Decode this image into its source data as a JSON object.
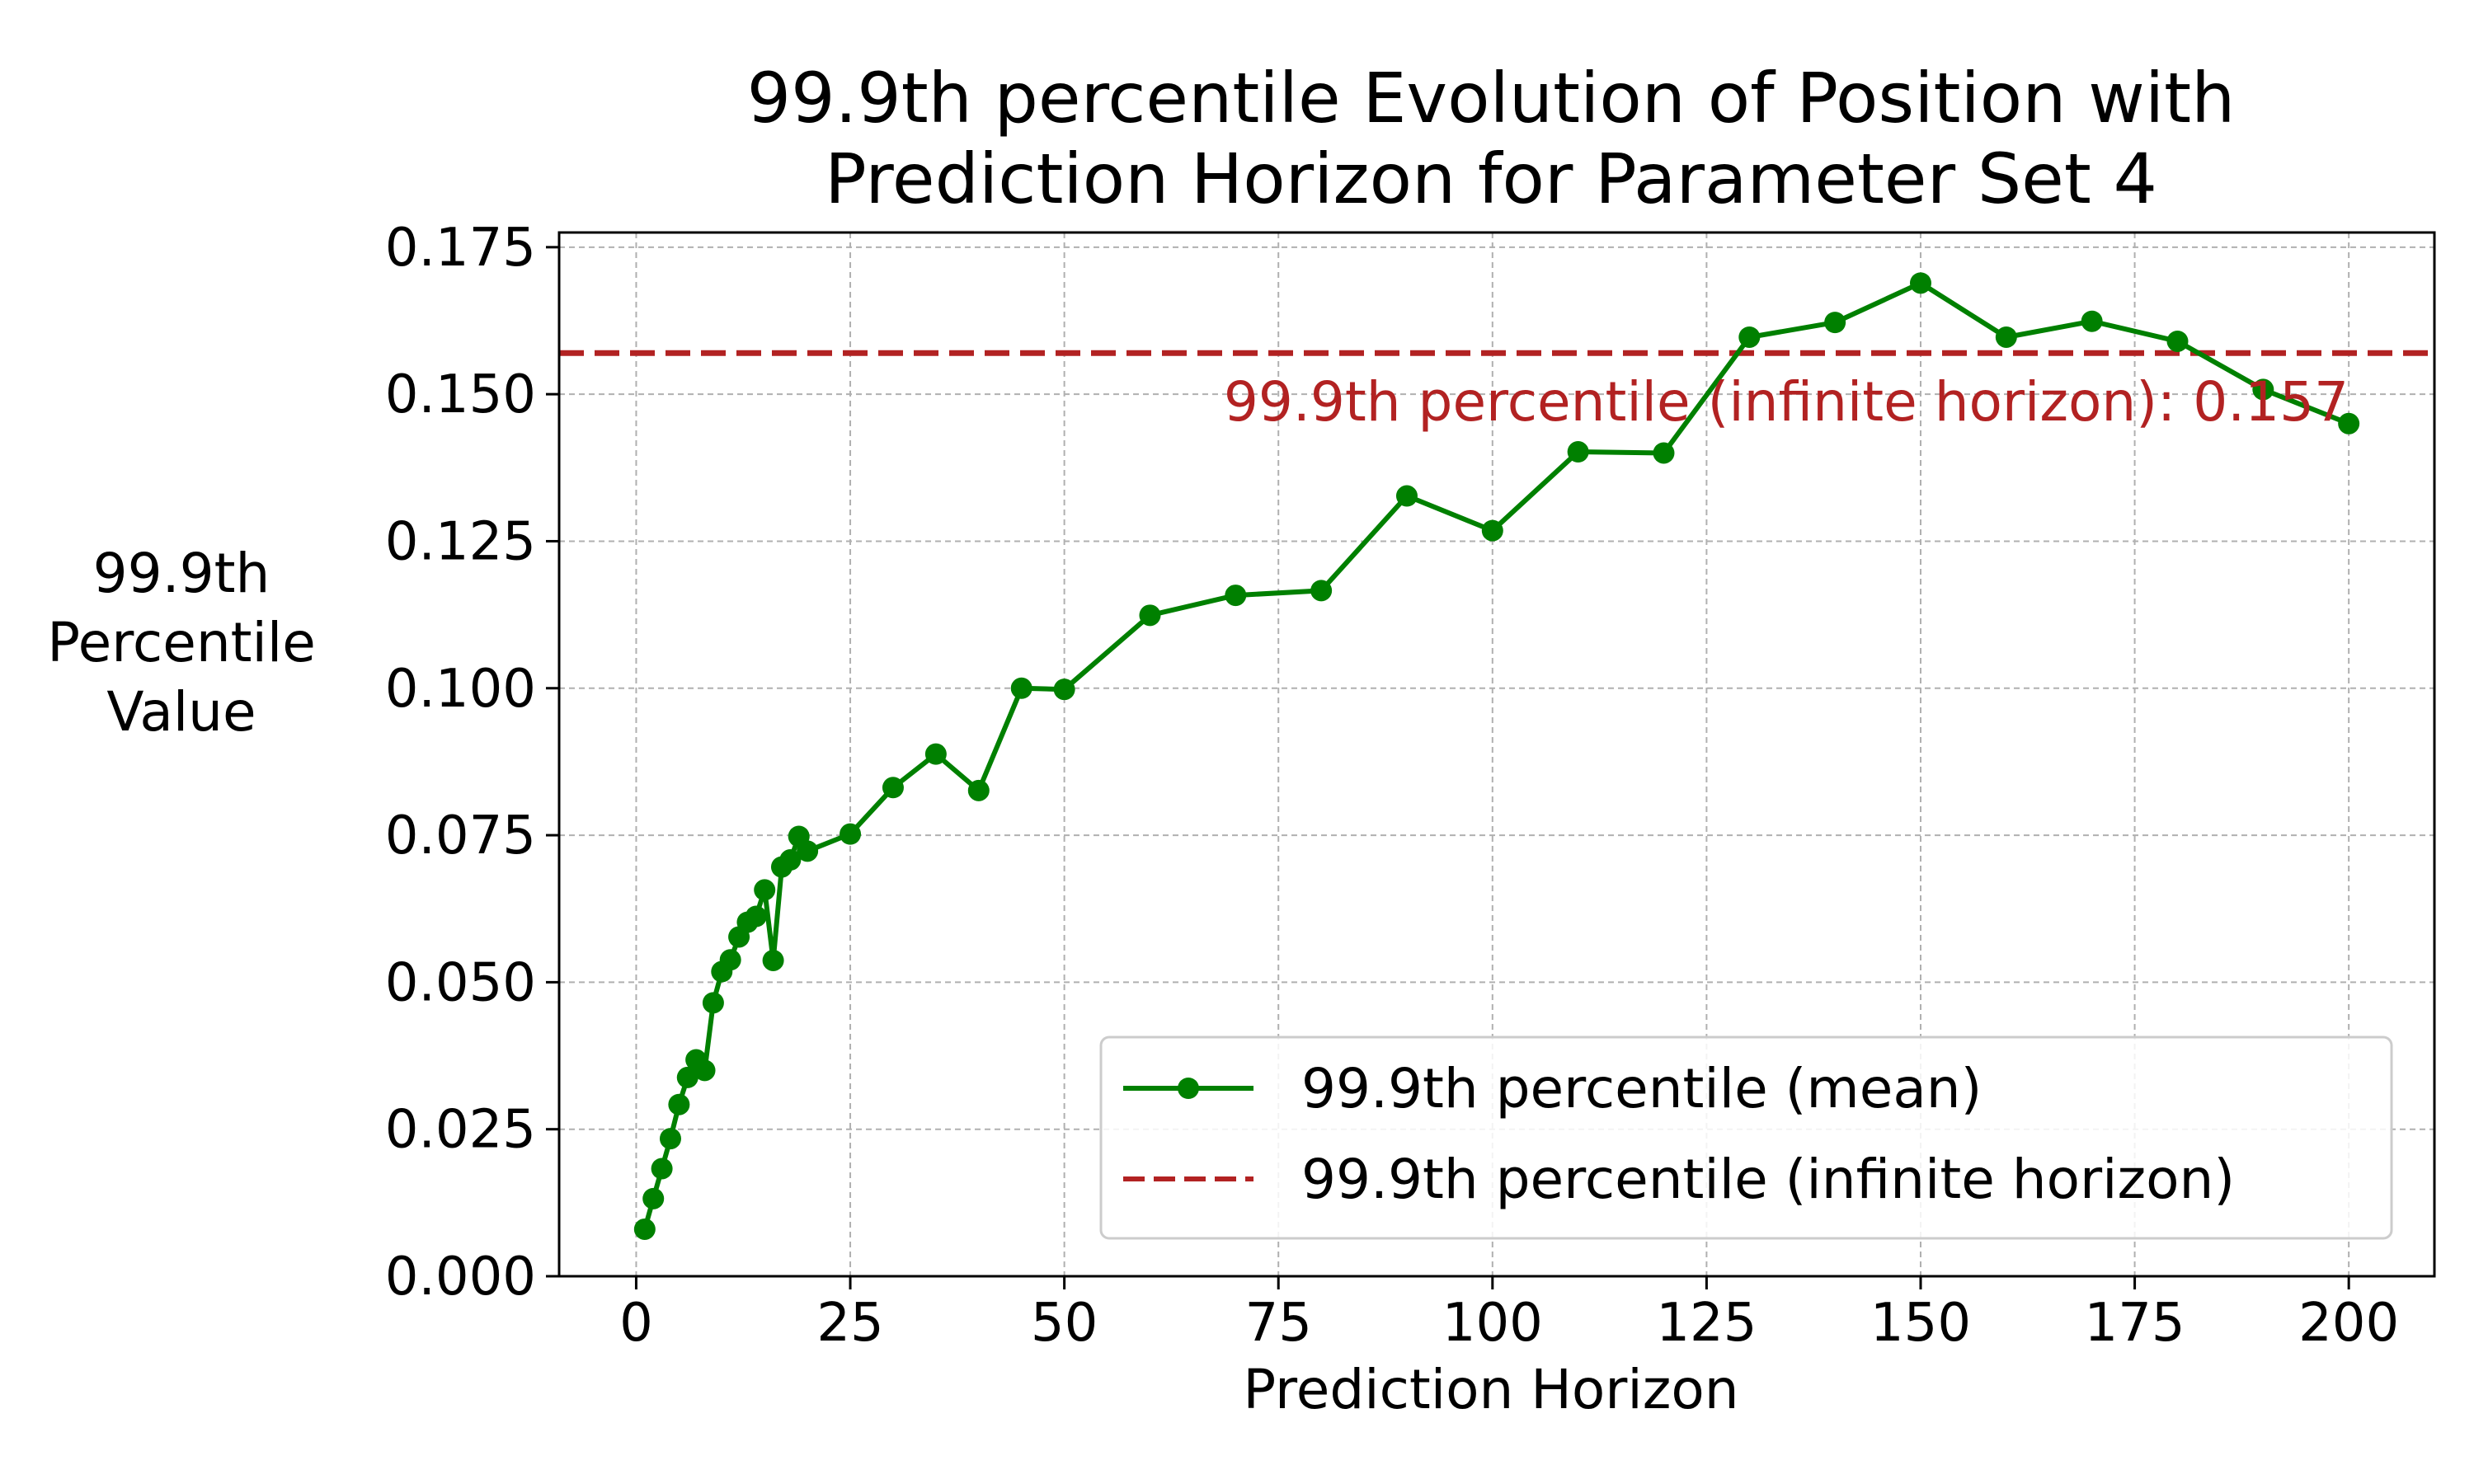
{
  "chart_data": {
    "type": "line",
    "title_lines": [
      "99.9th percentile Evolution of Position with",
      "Prediction Horizon for Parameter Set 4"
    ],
    "xlabel": "Prediction Horizon",
    "ylabel_lines": [
      "99.9th",
      "Percentile",
      "Value"
    ],
    "xlim": [
      -9,
      210
    ],
    "ylim": [
      0,
      0.1775
    ],
    "xticks": [
      0,
      25,
      50,
      75,
      100,
      125,
      150,
      175,
      200
    ],
    "xtick_labels": [
      "0",
      "25",
      "50",
      "75",
      "100",
      "125",
      "150",
      "175",
      "200"
    ],
    "yticks": [
      0,
      0.025,
      0.05,
      0.075,
      0.1,
      0.125,
      0.15,
      0.175
    ],
    "ytick_labels": [
      "0.000",
      "0.025",
      "0.050",
      "0.075",
      "0.100",
      "0.125",
      "0.150",
      "0.175"
    ],
    "grid": true,
    "legend_position": "lower-right",
    "series": [
      {
        "name": "99.9th percentile (mean)",
        "style": "line-marker",
        "color": "#008000",
        "x": [
          1,
          2,
          3,
          4,
          5,
          6,
          7,
          8,
          9,
          10,
          11,
          12,
          13,
          14,
          15,
          16,
          17,
          18,
          19,
          20,
          25,
          30,
          35,
          40,
          45,
          50,
          60,
          70,
          80,
          90,
          100,
          110,
          120,
          130,
          140,
          150,
          160,
          170,
          180,
          190,
          200
        ],
        "y": [
          0.008,
          0.0132,
          0.0183,
          0.0234,
          0.0292,
          0.0338,
          0.0368,
          0.035,
          0.0465,
          0.0518,
          0.0538,
          0.0577,
          0.0602,
          0.0612,
          0.0657,
          0.0537,
          0.0696,
          0.0708,
          0.0748,
          0.0723,
          0.0752,
          0.0831,
          0.0888,
          0.0826,
          0.1,
          0.0998,
          0.1124,
          0.1158,
          0.1166,
          0.1327,
          0.1268,
          0.1402,
          0.14,
          0.1597,
          0.1622,
          0.1689,
          0.1597,
          0.1624,
          0.159,
          0.1508,
          0.145
        ]
      },
      {
        "name": "99.9th percentile (infinite horizon)",
        "style": "dashed-hline",
        "color": "#b22222",
        "y": 0.157
      }
    ],
    "annotations": [
      {
        "text": "99.9th percentile (infinite horizon): 0.157",
        "color": "#b22222",
        "x": 200,
        "y": 0.157
      }
    ]
  }
}
